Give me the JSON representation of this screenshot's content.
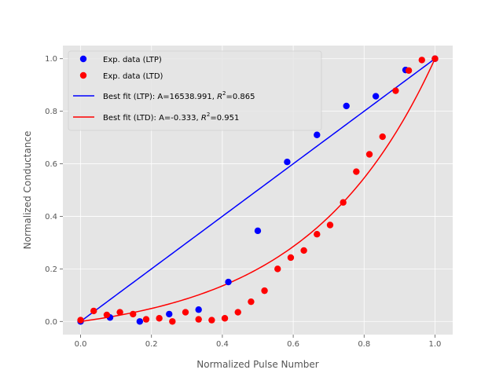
{
  "chart_data": {
    "type": "scatter",
    "title": "",
    "xlabel": "Normalized Pulse Number",
    "ylabel": "Normalized Conductance",
    "xlim": [
      -0.05,
      1.05
    ],
    "ylim": [
      -0.05,
      1.05
    ],
    "xticks": [
      "0.0",
      "0.2",
      "0.4",
      "0.6",
      "0.8",
      "1.0"
    ],
    "yticks": [
      "0.0",
      "0.2",
      "0.4",
      "0.6",
      "0.8",
      "1.0"
    ],
    "grid": true,
    "legend_position": "top-left",
    "series": [
      {
        "name": "Exp. data (LTP)",
        "kind": "scatter",
        "color": "#0000ff",
        "x": [
          0.0,
          0.083,
          0.167,
          0.25,
          0.333,
          0.417,
          0.5,
          0.583,
          0.667,
          0.75,
          0.833,
          0.917,
          1.0
        ],
        "y": [
          0.0,
          0.015,
          0.0,
          0.028,
          0.045,
          0.15,
          0.345,
          0.607,
          0.71,
          0.82,
          0.857,
          0.957,
          1.0
        ]
      },
      {
        "name": "Exp. data (LTD)",
        "kind": "scatter",
        "color": "#ff0000",
        "x": [
          0.0,
          0.037,
          0.074,
          0.111,
          0.148,
          0.185,
          0.222,
          0.259,
          0.296,
          0.333,
          0.37,
          0.407,
          0.444,
          0.481,
          0.519,
          0.556,
          0.593,
          0.63,
          0.667,
          0.704,
          0.741,
          0.778,
          0.815,
          0.852,
          0.889,
          0.926,
          0.963,
          1.0
        ],
        "y": [
          0.005,
          0.04,
          0.025,
          0.035,
          0.028,
          0.008,
          0.012,
          0.0,
          0.035,
          0.008,
          0.005,
          0.012,
          0.035,
          0.075,
          0.117,
          0.2,
          0.243,
          0.27,
          0.332,
          0.367,
          0.453,
          0.57,
          0.636,
          0.703,
          0.878,
          0.955,
          0.995,
          1.0
        ]
      },
      {
        "name": "Best fit (LTP): A=16538.991, $R^2$=0.865",
        "label_parts": [
          "Best fit (LTP): A=16538.991, ",
          "R",
          "2",
          "=0.865"
        ],
        "kind": "line",
        "color": "#0000ff",
        "A": 16538.991
      },
      {
        "name": "Best fit (LTD): A=-0.333, $R^2$=0.951",
        "label_parts": [
          "Best fit (LTD): A=-0.333, ",
          "R",
          "2",
          "=0.951"
        ],
        "kind": "line",
        "color": "#ff0000",
        "A": -0.333
      }
    ]
  },
  "colors": {
    "plot_background": "#e5e5e5",
    "grid": "#ffffff",
    "tick_label": "#555555"
  }
}
